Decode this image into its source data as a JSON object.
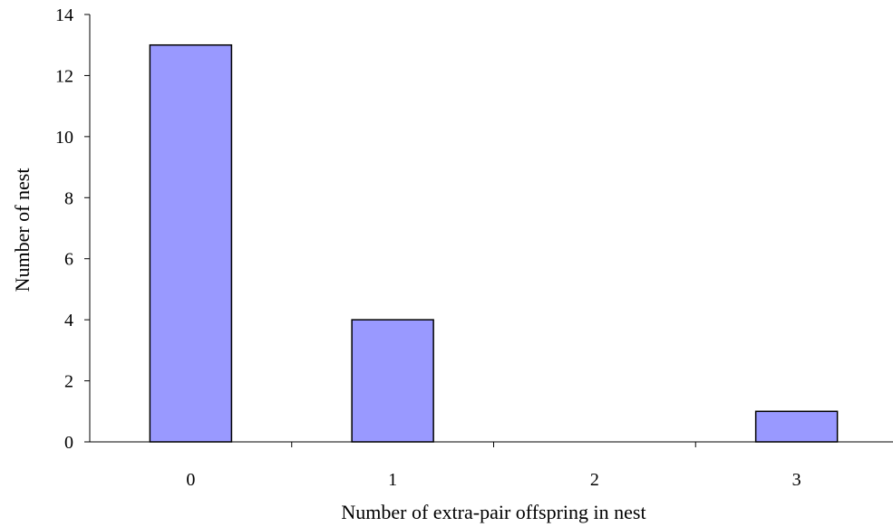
{
  "chart_data": {
    "type": "bar",
    "categories": [
      "0",
      "1",
      "2",
      "3"
    ],
    "values": [
      13,
      4,
      0,
      1
    ],
    "title": "",
    "xlabel": "Number of extra-pair offspring in nest",
    "ylabel": "Number of nest",
    "ylim": [
      0,
      14
    ],
    "yticks": [
      "0",
      "2",
      "4",
      "6",
      "8",
      "10",
      "12",
      "14"
    ],
    "grid": false,
    "legend": "none",
    "colors": {
      "bar_fill": "#9999FF",
      "bar_stroke": "#000000",
      "axis": "#000000"
    }
  }
}
